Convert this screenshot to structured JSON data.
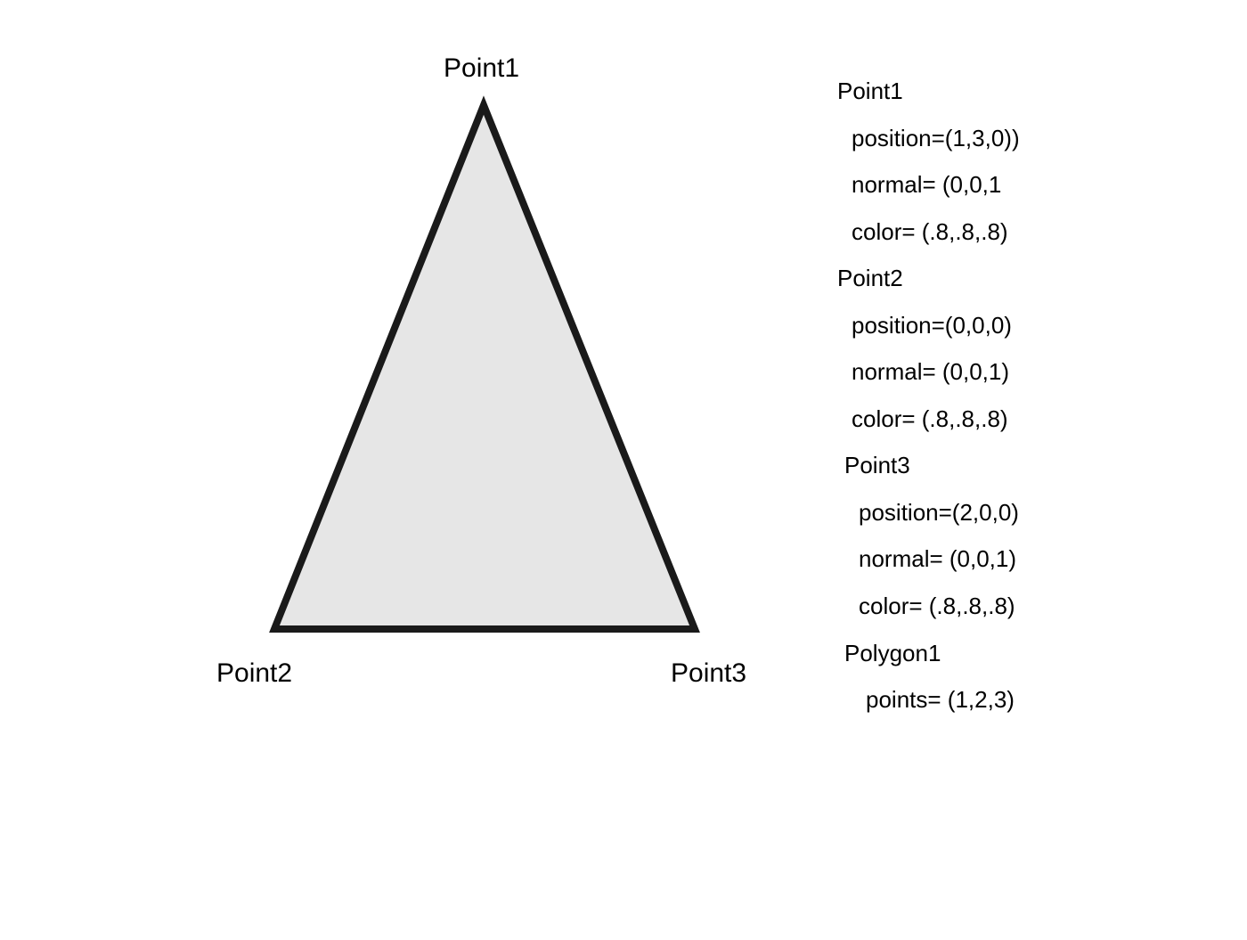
{
  "diagram": {
    "vertex_labels": {
      "point1": "Point1",
      "point2": "Point2",
      "point3": "Point3"
    },
    "colors": {
      "triangle_fill": "#e6e6e6",
      "triangle_stroke": "#1a1a1a",
      "text": "#000000"
    }
  },
  "spec": {
    "point1": {
      "name": "Point1",
      "position": "position=(1,3,0))",
      "normal": "normal= (0,0,1",
      "color": "color= (.8,.8,.8)"
    },
    "point2": {
      "name": "Point2",
      "position": "position=(0,0,0)",
      "normal": "normal= (0,0,1)",
      "color": "color= (.8,.8,.8)"
    },
    "point3": {
      "name": "Point3",
      "position": "position=(2,0,0)",
      "normal": "normal= (0,0,1)",
      "color": "color= (.8,.8,.8)"
    },
    "polygon1": {
      "name": "Polygon1",
      "points": "points= (1,2,3)"
    }
  }
}
